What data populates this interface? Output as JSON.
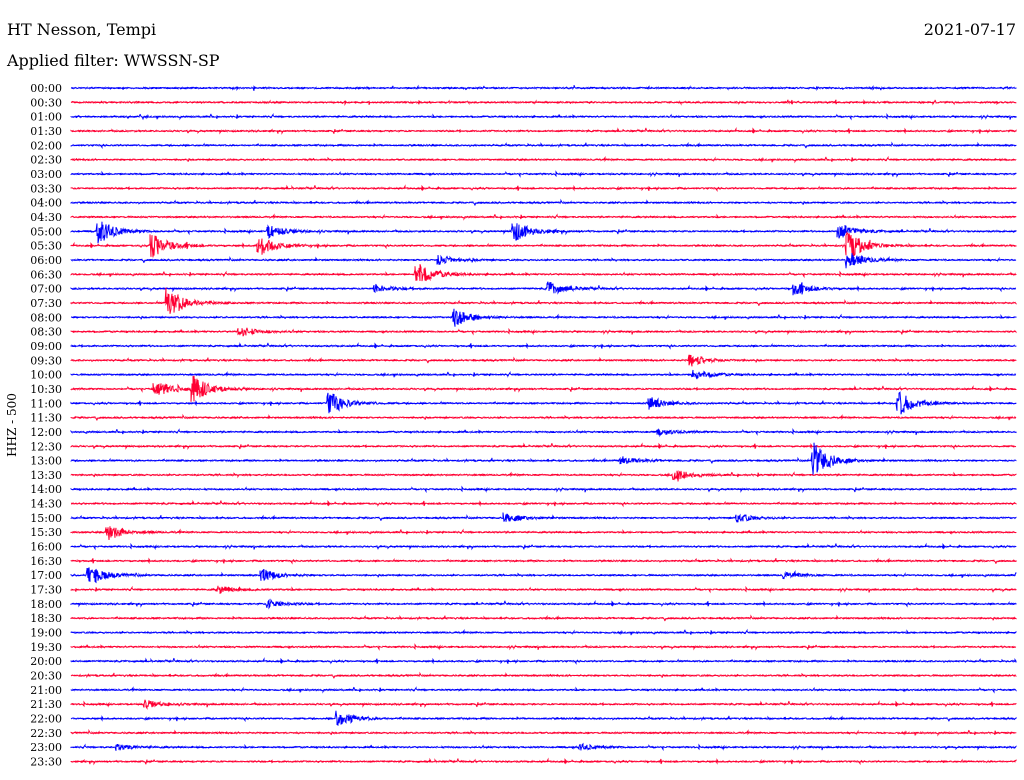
{
  "header": {
    "station": "HT Nesson, Tempi",
    "date": "2021-07-17",
    "filter": "Applied filter: WWSSN-SP"
  },
  "chart_data": {
    "type": "line",
    "title": "HT Nesson, Tempi",
    "ylabel": "HHZ - 500",
    "row_minutes": 30,
    "row_labels": [
      "00:00",
      "00:30",
      "01:00",
      "01:30",
      "02:00",
      "02:30",
      "03:00",
      "03:30",
      "04:00",
      "04:30",
      "05:00",
      "05:30",
      "06:00",
      "06:30",
      "07:00",
      "07:30",
      "08:00",
      "08:30",
      "09:00",
      "09:30",
      "10:00",
      "10:30",
      "11:00",
      "11:30",
      "12:00",
      "12:30",
      "13:00",
      "13:30",
      "14:00",
      "14:30",
      "15:00",
      "15:30",
      "16:00",
      "16:30",
      "17:00",
      "17:30",
      "18:00",
      "18:30",
      "19:00",
      "19:30",
      "20:00",
      "20:30",
      "21:00",
      "21:30",
      "22:00",
      "22:30",
      "23:00",
      "23:30"
    ],
    "colors": [
      "#0000ff",
      "#ff0033"
    ],
    "events": [
      {
        "row": "05:00",
        "minute": 0.9,
        "amp": 12
      },
      {
        "row": "05:00",
        "minute": 6.3,
        "amp": 6
      },
      {
        "row": "05:00",
        "minute": 14.1,
        "amp": 10
      },
      {
        "row": "05:00",
        "minute": 24.4,
        "amp": 8
      },
      {
        "row": "05:30",
        "minute": 2.6,
        "amp": 12
      },
      {
        "row": "05:30",
        "minute": 6.0,
        "amp": 10
      },
      {
        "row": "05:30",
        "minute": 24.7,
        "amp": 14
      },
      {
        "row": "06:00",
        "minute": 11.7,
        "amp": 5
      },
      {
        "row": "06:00",
        "minute": 24.7,
        "amp": 8
      },
      {
        "row": "06:30",
        "minute": 11.0,
        "amp": 12
      },
      {
        "row": "07:00",
        "minute": 15.2,
        "amp": 7
      },
      {
        "row": "07:00",
        "minute": 23.0,
        "amp": 6
      },
      {
        "row": "07:00",
        "minute": 9.7,
        "amp": 4
      },
      {
        "row": "07:30",
        "minute": 3.1,
        "amp": 16
      },
      {
        "row": "08:00",
        "minute": 12.2,
        "amp": 9
      },
      {
        "row": "08:30",
        "minute": 5.4,
        "amp": 5
      },
      {
        "row": "09:30",
        "minute": 19.7,
        "amp": 6
      },
      {
        "row": "10:00",
        "minute": 19.8,
        "amp": 5
      },
      {
        "row": "10:30",
        "minute": 2.7,
        "amp": 8
      },
      {
        "row": "10:30",
        "minute": 3.9,
        "amp": 12
      },
      {
        "row": "11:00",
        "minute": 8.2,
        "amp": 12
      },
      {
        "row": "11:00",
        "minute": 26.3,
        "amp": 12
      },
      {
        "row": "11:00",
        "minute": 18.4,
        "amp": 6
      },
      {
        "row": "12:00",
        "minute": 18.7,
        "amp": 3
      },
      {
        "row": "13:00",
        "minute": 23.6,
        "amp": 18
      },
      {
        "row": "13:00",
        "minute": 17.5,
        "amp": 4
      },
      {
        "row": "13:30",
        "minute": 19.2,
        "amp": 5
      },
      {
        "row": "15:00",
        "minute": 13.8,
        "amp": 5
      },
      {
        "row": "15:00",
        "minute": 21.2,
        "amp": 4
      },
      {
        "row": "15:30",
        "minute": 1.2,
        "amp": 8
      },
      {
        "row": "17:00",
        "minute": 0.6,
        "amp": 10
      },
      {
        "row": "17:00",
        "minute": 6.1,
        "amp": 6
      },
      {
        "row": "17:00",
        "minute": 22.7,
        "amp": 3
      },
      {
        "row": "17:30",
        "minute": 4.7,
        "amp": 4
      },
      {
        "row": "18:00",
        "minute": 6.3,
        "amp": 4
      },
      {
        "row": "21:30",
        "minute": 2.4,
        "amp": 4
      },
      {
        "row": "22:00",
        "minute": 8.5,
        "amp": 8
      },
      {
        "row": "23:00",
        "minute": 1.5,
        "amp": 3
      },
      {
        "row": "23:00",
        "minute": 16.2,
        "amp": 3
      }
    ]
  }
}
